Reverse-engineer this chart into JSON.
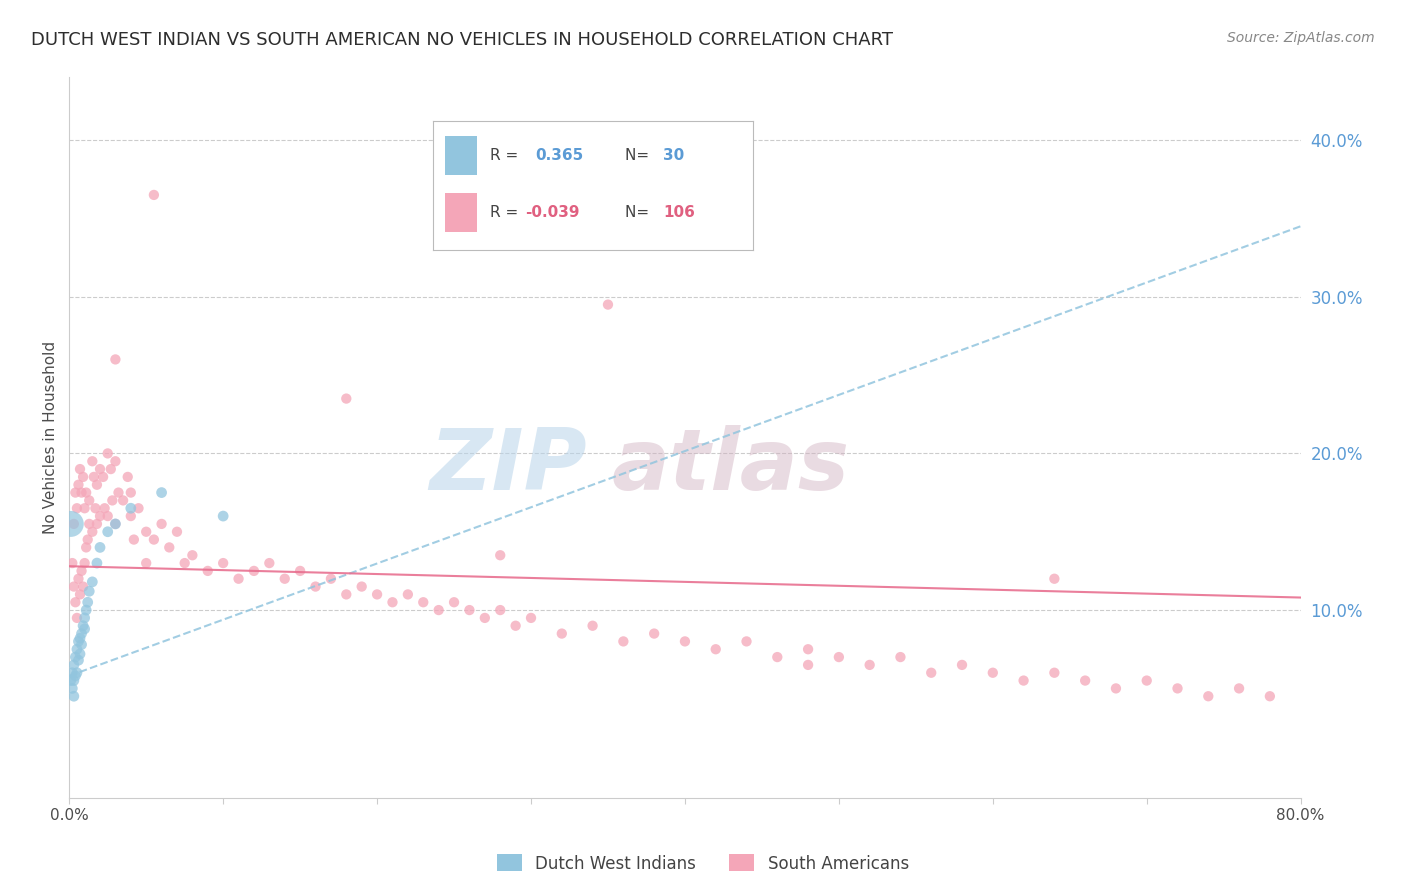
{
  "title": "DUTCH WEST INDIAN VS SOUTH AMERICAN NO VEHICLES IN HOUSEHOLD CORRELATION CHART",
  "source": "Source: ZipAtlas.com",
  "ylabel": "No Vehicles in Household",
  "xlim": [
    0.0,
    0.8
  ],
  "ylim": [
    -0.02,
    0.44
  ],
  "yticks_right": [
    0.1,
    0.2,
    0.3,
    0.4
  ],
  "ytick_labels_right": [
    "10.0%",
    "20.0%",
    "30.0%",
    "40.0%"
  ],
  "blue_color": "#92c5de",
  "pink_color": "#f4a6b8",
  "blue_trend_color": "#92c5de",
  "pink_trend_color": "#e87090",
  "watermark_zip": "ZIP",
  "watermark_atlas": "atlas",
  "blue_scatter_x": [
    0.001,
    0.002,
    0.002,
    0.003,
    0.003,
    0.003,
    0.004,
    0.004,
    0.005,
    0.005,
    0.006,
    0.006,
    0.007,
    0.007,
    0.008,
    0.008,
    0.009,
    0.01,
    0.01,
    0.011,
    0.012,
    0.013,
    0.015,
    0.018,
    0.02,
    0.025,
    0.03,
    0.04,
    0.06,
    0.1
  ],
  "blue_scatter_y": [
    0.055,
    0.05,
    0.06,
    0.045,
    0.055,
    0.065,
    0.058,
    0.07,
    0.06,
    0.075,
    0.068,
    0.08,
    0.072,
    0.082,
    0.085,
    0.078,
    0.09,
    0.088,
    0.095,
    0.1,
    0.105,
    0.112,
    0.118,
    0.13,
    0.14,
    0.15,
    0.155,
    0.165,
    0.175,
    0.16
  ],
  "blue_scatter_large_x": [
    0.001
  ],
  "blue_scatter_large_y": [
    0.155
  ],
  "pink_scatter_x": [
    0.002,
    0.003,
    0.003,
    0.004,
    0.004,
    0.005,
    0.005,
    0.006,
    0.006,
    0.007,
    0.007,
    0.008,
    0.008,
    0.009,
    0.009,
    0.01,
    0.01,
    0.011,
    0.011,
    0.012,
    0.013,
    0.013,
    0.015,
    0.015,
    0.016,
    0.017,
    0.018,
    0.018,
    0.02,
    0.02,
    0.022,
    0.023,
    0.025,
    0.025,
    0.027,
    0.028,
    0.03,
    0.03,
    0.032,
    0.035,
    0.038,
    0.04,
    0.04,
    0.042,
    0.045,
    0.05,
    0.05,
    0.055,
    0.06,
    0.065,
    0.07,
    0.075,
    0.08,
    0.09,
    0.1,
    0.11,
    0.12,
    0.13,
    0.14,
    0.15,
    0.16,
    0.17,
    0.18,
    0.19,
    0.2,
    0.21,
    0.22,
    0.23,
    0.24,
    0.25,
    0.26,
    0.27,
    0.28,
    0.29,
    0.3,
    0.32,
    0.34,
    0.36,
    0.38,
    0.4,
    0.42,
    0.44,
    0.46,
    0.48,
    0.5,
    0.52,
    0.54,
    0.56,
    0.58,
    0.6,
    0.62,
    0.64,
    0.66,
    0.68,
    0.7,
    0.72,
    0.74,
    0.76,
    0.78,
    0.64,
    0.35,
    0.055,
    0.03,
    0.18,
    0.28,
    0.48
  ],
  "pink_scatter_y": [
    0.13,
    0.115,
    0.155,
    0.105,
    0.175,
    0.095,
    0.165,
    0.12,
    0.18,
    0.11,
    0.19,
    0.125,
    0.175,
    0.115,
    0.185,
    0.13,
    0.165,
    0.14,
    0.175,
    0.145,
    0.17,
    0.155,
    0.195,
    0.15,
    0.185,
    0.165,
    0.18,
    0.155,
    0.19,
    0.16,
    0.185,
    0.165,
    0.2,
    0.16,
    0.19,
    0.17,
    0.195,
    0.155,
    0.175,
    0.17,
    0.185,
    0.16,
    0.175,
    0.145,
    0.165,
    0.15,
    0.13,
    0.145,
    0.155,
    0.14,
    0.15,
    0.13,
    0.135,
    0.125,
    0.13,
    0.12,
    0.125,
    0.13,
    0.12,
    0.125,
    0.115,
    0.12,
    0.11,
    0.115,
    0.11,
    0.105,
    0.11,
    0.105,
    0.1,
    0.105,
    0.1,
    0.095,
    0.1,
    0.09,
    0.095,
    0.085,
    0.09,
    0.08,
    0.085,
    0.08,
    0.075,
    0.08,
    0.07,
    0.075,
    0.07,
    0.065,
    0.07,
    0.06,
    0.065,
    0.06,
    0.055,
    0.06,
    0.055,
    0.05,
    0.055,
    0.05,
    0.045,
    0.05,
    0.045,
    0.12,
    0.295,
    0.365,
    0.26,
    0.235,
    0.135,
    0.065
  ],
  "blue_trend_x0": 0.0,
  "blue_trend_y0": 0.058,
  "blue_trend_x1": 0.8,
  "blue_trend_y1": 0.345,
  "pink_trend_x0": 0.0,
  "pink_trend_y0": 0.128,
  "pink_trend_x1": 0.8,
  "pink_trend_y1": 0.108
}
